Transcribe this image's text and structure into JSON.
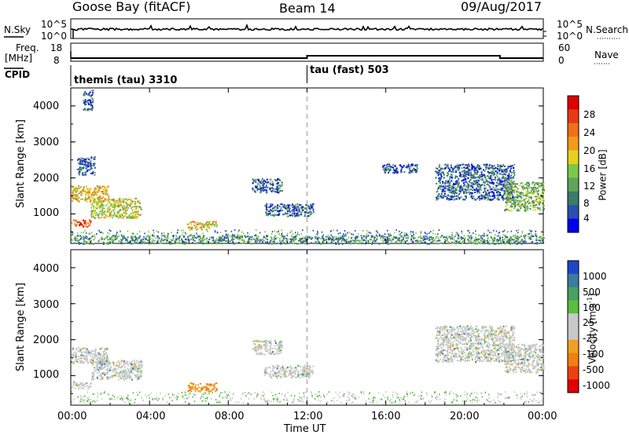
{
  "header": {
    "station": "Goose Bay (fitACF)",
    "beam": "Beam 14",
    "date": "09/Aug/2017"
  },
  "strip_noise": {
    "left_label": "N.Sky",
    "left_ticks": [
      "10^5",
      "10^0"
    ],
    "right_label": "N.Search",
    "right_ticks": [
      "10^5",
      "10^0"
    ]
  },
  "strip_freq": {
    "left_label_1": "Freq.",
    "left_label_2": "[MHz]",
    "left_ticks": [
      "18",
      "8"
    ],
    "right_label": "Nave",
    "right_ticks": [
      "60",
      "0"
    ]
  },
  "cpid": {
    "label": "CPID",
    "mode1": "themis (tau) 3310",
    "mode2": "tau (fast) 503"
  },
  "x_axis": {
    "title": "Time UT",
    "ticks": [
      "00:00",
      "04:00",
      "08:00",
      "12:00",
      "16:00",
      "20:00",
      "00:00"
    ]
  },
  "colors": {
    "power_scale": [
      "#0000ee",
      "#2a4fb0",
      "#3c7a6a",
      "#5fa55a",
      "#7cc84a",
      "#e6d21e",
      "#f29a1a",
      "#f07018",
      "#e83a12",
      "#e00000"
    ],
    "velocity_scale": [
      "#2046c8",
      "#3a7da0",
      "#4aa060",
      "#58c040",
      "#c8c8c8",
      "#c8c8c8",
      "#f0a020",
      "#f08010",
      "#f04010",
      "#e00000"
    ]
  },
  "chart_data": [
    {
      "type": "heatmap",
      "title": "Power",
      "ylabel": "Slant Range [km]",
      "xlabel": "",
      "x_range": [
        "00:00",
        "24:00"
      ],
      "ylim": [
        180,
        4500
      ],
      "y_ticks": [
        1000,
        2000,
        3000,
        4000
      ],
      "colorbar": {
        "label": "Power [dB]",
        "ticks": [
          4,
          8,
          12,
          16,
          20,
          24,
          28
        ],
        "range": [
          0,
          30
        ]
      },
      "regions": [
        {
          "t_start": 0.0,
          "t_end": 1.9,
          "r_start": 1350,
          "r_end": 1800,
          "value": 18
        },
        {
          "t_start": 0.0,
          "t_end": 1.0,
          "r_start": 650,
          "r_end": 850,
          "value": 24
        },
        {
          "t_start": 1.0,
          "t_end": 3.6,
          "r_start": 900,
          "r_end": 1450,
          "value": 16
        },
        {
          "t_start": 0.3,
          "t_end": 1.2,
          "r_start": 2100,
          "r_end": 2600,
          "value": 6
        },
        {
          "t_start": 0.6,
          "t_end": 1.1,
          "r_start": 3900,
          "r_end": 4450,
          "value": 6
        },
        {
          "t_start": 5.9,
          "t_end": 7.4,
          "r_start": 580,
          "r_end": 820,
          "value": 20
        },
        {
          "t_start": 9.2,
          "t_end": 10.7,
          "r_start": 1600,
          "r_end": 2000,
          "value": 8
        },
        {
          "t_start": 9.8,
          "t_end": 12.3,
          "r_start": 950,
          "r_end": 1300,
          "value": 8
        },
        {
          "t_start": 15.8,
          "t_end": 17.6,
          "r_start": 2150,
          "r_end": 2400,
          "value": 6
        },
        {
          "t_start": 18.5,
          "t_end": 22.5,
          "r_start": 1400,
          "r_end": 2400,
          "value": 8
        },
        {
          "t_start": 22.0,
          "t_end": 24.0,
          "r_start": 1100,
          "r_end": 1900,
          "value": 14
        },
        {
          "t_start": 0.0,
          "t_end": 24.0,
          "r_start": 180,
          "r_end": 420,
          "value": 10
        }
      ]
    },
    {
      "type": "heatmap",
      "title": "Velocity",
      "ylabel": "Slant Range [km]",
      "xlabel": "Time UT",
      "x_range": [
        "00:00",
        "24:00"
      ],
      "ylim": [
        180,
        4500
      ],
      "y_ticks": [
        1000,
        2000,
        3000,
        4000
      ],
      "colorbar": {
        "label": "Velocity [m s^-1]",
        "ticks": [
          "1000",
          "500",
          "100",
          "25",
          "-25",
          "-100",
          "-500",
          "-1000"
        ]
      },
      "regions": [
        {
          "t_start": 0.0,
          "t_end": 1.9,
          "r_start": 1350,
          "r_end": 1800,
          "value": 0
        },
        {
          "t_start": 0.0,
          "t_end": 1.0,
          "r_start": 650,
          "r_end": 850,
          "value": 0
        },
        {
          "t_start": 1.0,
          "t_end": 3.6,
          "r_start": 900,
          "r_end": 1450,
          "value": -50
        },
        {
          "t_start": 5.9,
          "t_end": 7.4,
          "r_start": 580,
          "r_end": 820,
          "value": -150
        },
        {
          "t_start": 9.2,
          "t_end": 10.7,
          "r_start": 1600,
          "r_end": 2000,
          "value": 0
        },
        {
          "t_start": 9.8,
          "t_end": 12.3,
          "r_start": 950,
          "r_end": 1300,
          "value": 0
        },
        {
          "t_start": 18.5,
          "t_end": 22.5,
          "r_start": 1400,
          "r_end": 2400,
          "value": 0
        },
        {
          "t_start": 22.0,
          "t_end": 24.0,
          "r_start": 1100,
          "r_end": 1900,
          "value": 0
        }
      ]
    }
  ]
}
